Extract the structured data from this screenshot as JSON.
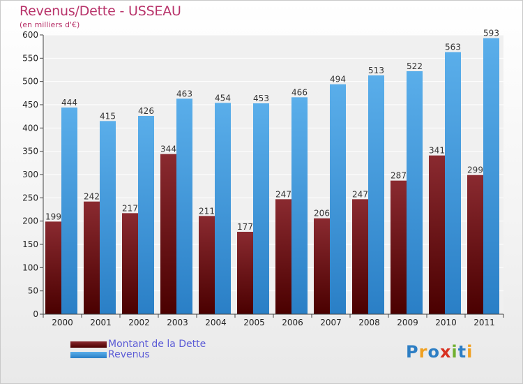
{
  "title": "Revenus/Dette - USSEAU",
  "subtitle": "(en milliers d'€)",
  "colors": {
    "dette": "#6b0f14",
    "revenus": "#3d9ee4",
    "title": "#b8336a",
    "legend_text": "#5b5bd6"
  },
  "logo": {
    "text": "Proxiti",
    "letters": [
      "P",
      "r",
      "o",
      "x",
      "i",
      "t",
      "i"
    ],
    "colors": [
      "#2d7ec4",
      "#f0a020",
      "#2d7ec4",
      "#d83020",
      "#70b030",
      "#2d7ec4",
      "#f0a020"
    ]
  },
  "legend": [
    {
      "label": "Montant de la Dette",
      "series": "dette"
    },
    {
      "label": "Revenus",
      "series": "revenus"
    }
  ],
  "chart_data": {
    "type": "bar",
    "title": "Revenus/Dette - USSEAU",
    "ylabel": "(en milliers d'€)",
    "xlabel": "",
    "ylim": [
      0,
      600
    ],
    "yticks": [
      0,
      50,
      100,
      150,
      200,
      250,
      300,
      350,
      400,
      450,
      500,
      550,
      600
    ],
    "grid": true,
    "categories": [
      "2000",
      "2001",
      "2002",
      "2003",
      "2004",
      "2005",
      "2006",
      "2007",
      "2008",
      "2009",
      "2010",
      "2011"
    ],
    "series": [
      {
        "name": "Montant de la Dette",
        "key": "dette",
        "values": [
          199,
          242,
          217,
          344,
          211,
          177,
          247,
          206,
          247,
          287,
          341,
          299
        ]
      },
      {
        "name": "Revenus",
        "key": "revenus",
        "values": [
          444,
          415,
          426,
          463,
          454,
          453,
          466,
          494,
          513,
          522,
          563,
          593
        ]
      }
    ]
  }
}
